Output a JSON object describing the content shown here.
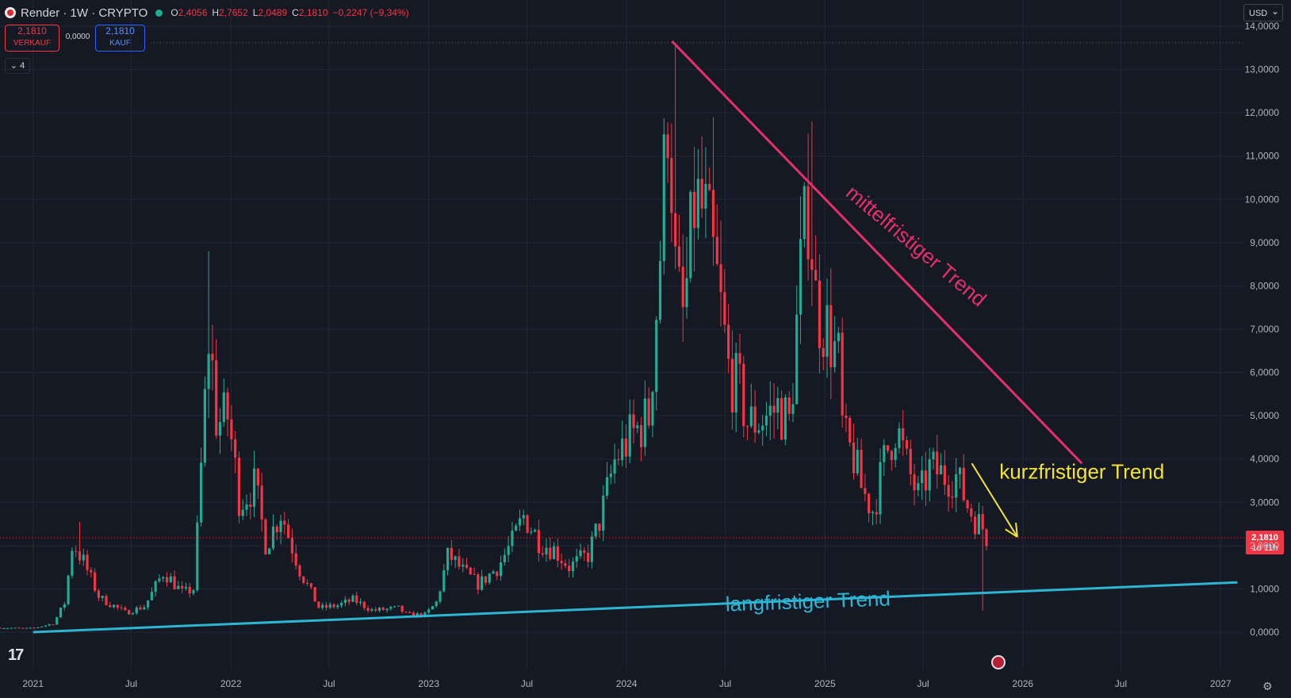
{
  "header": {
    "symbol_title": "Render · 1W · CRYPTO",
    "ohlc": [
      {
        "key": "O",
        "value": "2,4056"
      },
      {
        "key": "H",
        "value": "2,7652"
      },
      {
        "key": "L",
        "value": "2,0489"
      },
      {
        "key": "C",
        "value": "2,1810"
      }
    ],
    "change": "−0,2247 (−9,34%)",
    "sell_price": "2,1810",
    "sell_label": "VERKAUF",
    "spread": "0,0000",
    "buy_price": "2,1810",
    "buy_label": "KAUF",
    "indicator_count": "4",
    "currency": "USD"
  },
  "price_tag": {
    "price": "2,1810",
    "countdown": "1d 11h"
  },
  "colors": {
    "background": "#151924",
    "up": "#22ab94",
    "down": "#f23645",
    "grid": "#232733",
    "axis_text": "#b2b5be",
    "long_trend": "#2fb5d4",
    "mid_trend": "#e5306b",
    "short_trend": "#f2e23b"
  },
  "chart_data": {
    "type": "candlestick",
    "title": "Render · 1W · CRYPTO",
    "grid": true,
    "y_axis": {
      "position": "right",
      "range": [
        0,
        14
      ],
      "tick_labels": [
        "0,0000",
        "1,0000",
        "2,0000",
        "3,0000",
        "4,0000",
        "5,0000",
        "6,0000",
        "7,0000",
        "8,0000",
        "9,0000",
        "10,0000",
        "11,0000",
        "12,0000",
        "13,0000",
        "14,0000"
      ],
      "tick_values": [
        0,
        1,
        2,
        3,
        4,
        5,
        6,
        7,
        8,
        9,
        10,
        11,
        12,
        13,
        14
      ]
    },
    "x_axis": {
      "range": [
        "2020-11-01",
        "2027-02-15"
      ],
      "ticks": [
        {
          "date": "2021-01-01",
          "label": "2021"
        },
        {
          "date": "2021-07-01",
          "label": "Jul"
        },
        {
          "date": "2022-01-01",
          "label": "2022"
        },
        {
          "date": "2022-07-01",
          "label": "Jul"
        },
        {
          "date": "2023-01-01",
          "label": "2023"
        },
        {
          "date": "2023-07-01",
          "label": "Jul"
        },
        {
          "date": "2024-01-01",
          "label": "2024"
        },
        {
          "date": "2024-07-01",
          "label": "Jul"
        },
        {
          "date": "2025-01-01",
          "label": "2025"
        },
        {
          "date": "2025-07-01",
          "label": "Jul"
        },
        {
          "date": "2026-01-01",
          "label": "2026"
        },
        {
          "date": "2026-07-01",
          "label": "Jul"
        },
        {
          "date": "2027-01-01",
          "label": "2027"
        }
      ]
    },
    "price_path": [
      [
        "2020-11-01",
        0.1
      ],
      [
        "2021-01-01",
        0.09
      ],
      [
        "2021-02-08",
        0.2
      ],
      [
        "2021-03-01",
        0.7
      ],
      [
        "2021-03-15",
        2.1
      ],
      [
        "2021-04-05",
        1.6
      ],
      [
        "2021-05-03",
        0.8
      ],
      [
        "2021-06-21",
        0.45
      ],
      [
        "2021-07-26",
        0.6
      ],
      [
        "2021-08-30",
        1.4
      ],
      [
        "2021-10-04",
        0.9
      ],
      [
        "2021-10-25",
        1.0
      ],
      [
        "2021-11-08",
        4.0
      ],
      [
        "2021-11-22",
        7.0
      ],
      [
        "2021-12-06",
        4.8
      ],
      [
        "2021-12-27",
        5.0
      ],
      [
        "2022-01-17",
        3.0
      ],
      [
        "2022-02-14",
        3.4
      ],
      [
        "2022-03-07",
        2.0
      ],
      [
        "2022-04-04",
        2.8
      ],
      [
        "2022-04-18",
        2.2
      ],
      [
        "2022-05-09",
        1.4
      ],
      [
        "2022-06-13",
        0.55
      ],
      [
        "2022-07-18",
        0.62
      ],
      [
        "2022-08-15",
        0.75
      ],
      [
        "2022-09-19",
        0.5
      ],
      [
        "2022-11-07",
        0.55
      ],
      [
        "2022-11-21",
        0.4
      ],
      [
        "2022-12-26",
        0.4
      ],
      [
        "2023-01-16",
        0.7
      ],
      [
        "2023-02-06",
        1.8
      ],
      [
        "2023-03-06",
        1.4
      ],
      [
        "2023-04-03",
        1.1
      ],
      [
        "2023-05-08",
        1.5
      ],
      [
        "2023-06-05",
        2.1
      ],
      [
        "2023-06-26",
        2.7
      ],
      [
        "2023-07-24",
        2.1
      ],
      [
        "2023-08-21",
        1.9
      ],
      [
        "2023-09-18",
        1.5
      ],
      [
        "2023-10-23",
        1.8
      ],
      [
        "2023-11-13",
        2.6
      ],
      [
        "2023-12-11",
        4.0
      ],
      [
        "2024-01-08",
        4.5
      ],
      [
        "2024-02-12",
        5.0
      ],
      [
        "2024-03-04",
        9.0
      ],
      [
        "2024-03-18",
        12.5
      ],
      [
        "2024-04-01",
        8.0
      ],
      [
        "2024-04-15",
        7.2
      ],
      [
        "2024-05-06",
        10.0
      ],
      [
        "2024-05-27",
        9.5
      ],
      [
        "2024-06-17",
        8.0
      ],
      [
        "2024-07-08",
        6.0
      ],
      [
        "2024-07-29",
        5.5
      ],
      [
        "2024-08-12",
        4.8
      ],
      [
        "2024-09-16",
        5.0
      ],
      [
        "2024-10-07",
        5.2
      ],
      [
        "2024-10-28",
        4.8
      ],
      [
        "2024-11-18",
        8.5
      ],
      [
        "2024-12-02",
        10.0
      ],
      [
        "2024-12-16",
        7.5
      ],
      [
        "2025-01-06",
        7.0
      ],
      [
        "2025-01-27",
        6.2
      ],
      [
        "2025-02-03",
        4.5
      ],
      [
        "2025-02-24",
        4.0
      ],
      [
        "2025-03-10",
        3.3
      ],
      [
        "2025-03-31",
        2.8
      ],
      [
        "2025-04-21",
        4.0
      ],
      [
        "2025-05-12",
        4.8
      ],
      [
        "2025-06-02",
        3.8
      ],
      [
        "2025-06-23",
        3.1
      ],
      [
        "2025-07-14",
        3.8
      ],
      [
        "2025-08-11",
        3.6
      ],
      [
        "2025-09-01",
        3.6
      ],
      [
        "2025-09-22",
        2.9
      ],
      [
        "2025-10-06",
        2.6
      ],
      [
        "2025-10-20",
        2.4
      ],
      [
        "2025-10-27",
        2.18
      ]
    ],
    "spikes": [
      {
        "date": "2021-03-22",
        "high": 2.55
      },
      {
        "date": "2021-11-15",
        "high": 8.8
      },
      {
        "date": "2024-03-25",
        "high": 13.6
      },
      {
        "date": "2024-06-03",
        "high": 11.9
      },
      {
        "date": "2024-12-02",
        "high": 11.8
      },
      {
        "date": "2025-10-13",
        "low": 0.5
      }
    ],
    "last_close": 2.181,
    "annotations": [
      {
        "id": "long",
        "text": "langfristiger Trend",
        "line": [
          [
            "2021-01-01",
            0.0
          ],
          [
            "2027-02-01",
            1.15
          ]
        ],
        "text_at": [
          "2024-12-01",
          0.55
        ]
      },
      {
        "id": "mid",
        "text": "mittelfristiger Trend",
        "line": [
          [
            "2024-03-25",
            13.65
          ],
          [
            "2026-04-20",
            3.9
          ]
        ],
        "text_at": [
          "2025-06-10",
          8.8
        ]
      },
      {
        "id": "short",
        "text": "kurzfristiger Trend",
        "arrow": [
          [
            "2025-09-29",
            3.9
          ],
          [
            "2025-12-22",
            2.2
          ]
        ],
        "text_at": [
          "2026-04-20",
          3.55
        ]
      }
    ]
  }
}
